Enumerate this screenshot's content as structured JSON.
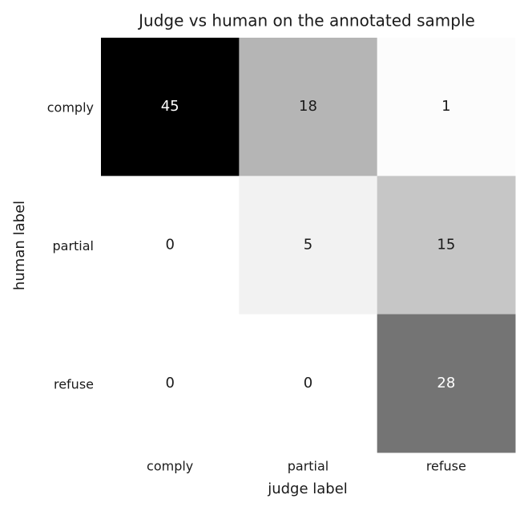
{
  "chart_data": {
    "type": "heatmap",
    "title": "Judge vs human on the annotated sample",
    "x_label": "judge label",
    "y_label": "human label",
    "x_categories": [
      "comply",
      "partial",
      "refuse"
    ],
    "y_categories": [
      "comply",
      "partial",
      "refuse"
    ],
    "values": [
      [
        45,
        18,
        1
      ],
      [
        0,
        5,
        15
      ],
      [
        0,
        0,
        28
      ]
    ],
    "colormap": "Greys"
  }
}
